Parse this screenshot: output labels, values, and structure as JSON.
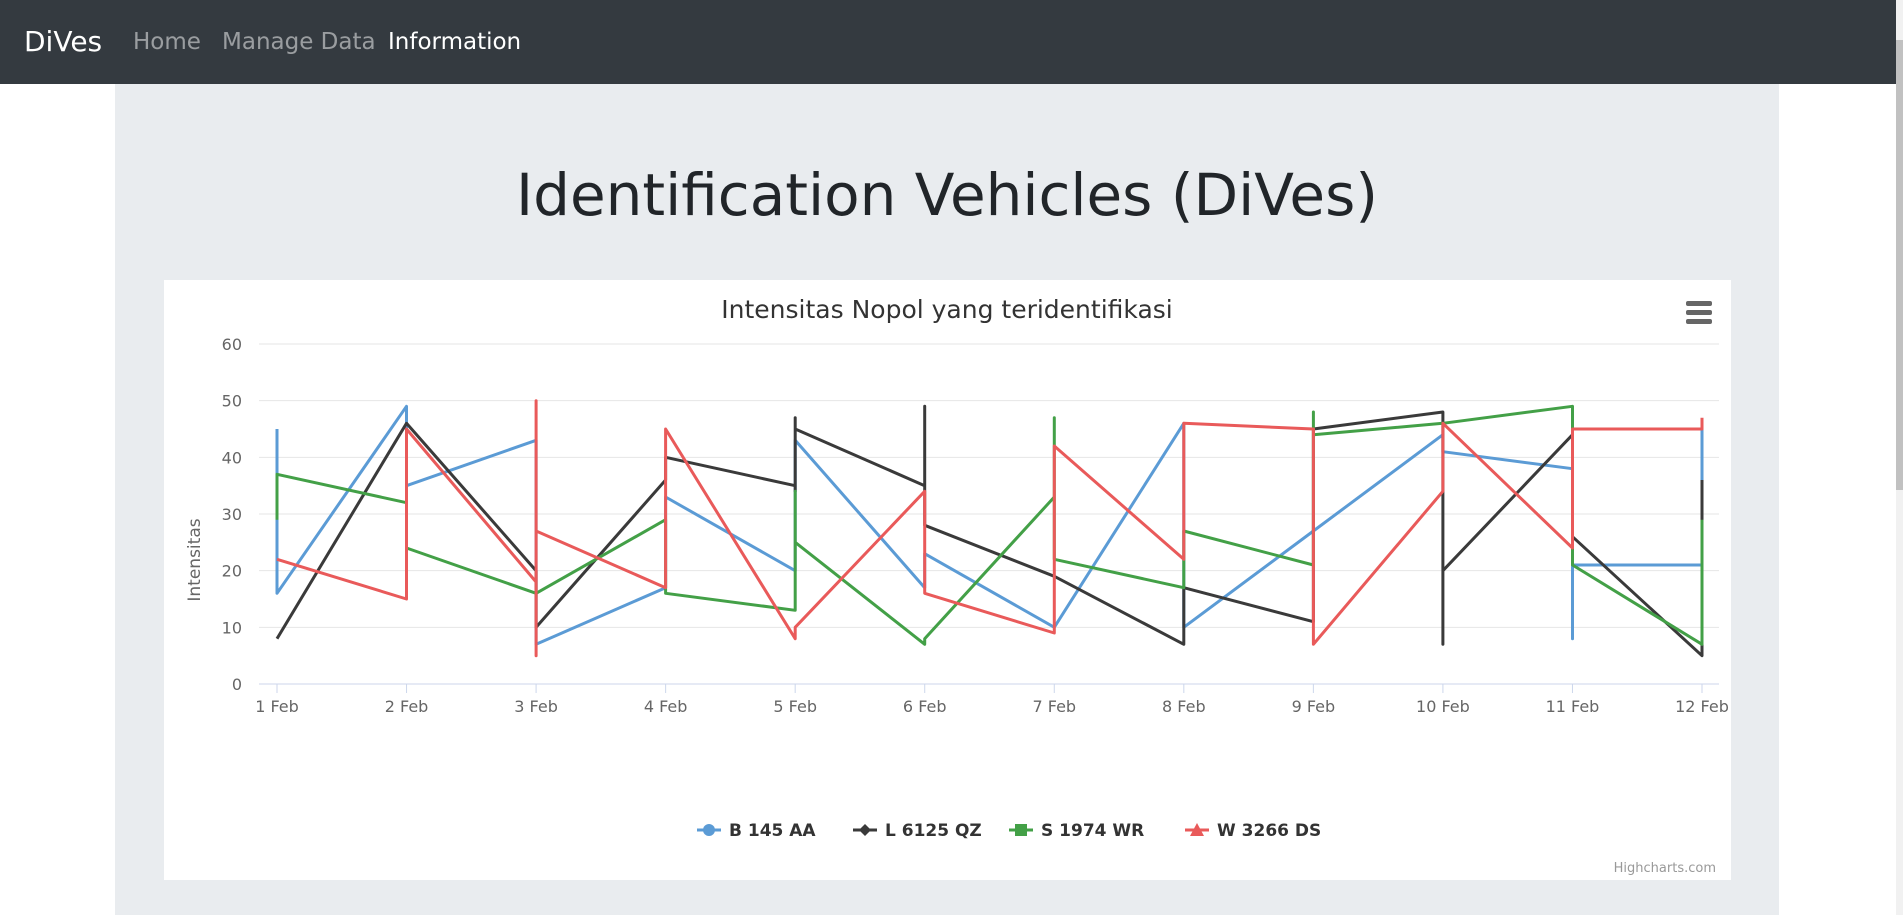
{
  "nav": {
    "brand": "DiVes",
    "links": [
      {
        "label": "Home",
        "active": false
      },
      {
        "label": "Manage Data",
        "active": false
      },
      {
        "label": "Information",
        "active": true
      }
    ]
  },
  "page": {
    "heading": "Identification Vehicles (DiVes)"
  },
  "chart_menu_icon": "hamburger-menu-icon",
  "credits": "Highcharts.com",
  "chart_data": {
    "type": "line",
    "title": "Intensitas Nopol yang teridentifikasi",
    "ylabel": "Intensitas",
    "xlabel": "",
    "ylim": [
      0,
      60
    ],
    "yticks": [
      0,
      10,
      20,
      30,
      40,
      50,
      60
    ],
    "categories": [
      "1 Feb",
      "2 Feb",
      "3 Feb",
      "4 Feb",
      "5 Feb",
      "6 Feb",
      "7 Feb",
      "8 Feb",
      "9 Feb",
      "10 Feb",
      "11 Feb",
      "12 Feb"
    ],
    "grid": true,
    "legend": "bottom-center",
    "series": [
      {
        "name": "B 145 AA",
        "color": "#5b9bd5",
        "marker": "circle",
        "points": [
          [
            0,
            45
          ],
          [
            0,
            16
          ],
          [
            1,
            49
          ],
          [
            1,
            35
          ],
          [
            2,
            43
          ],
          [
            2,
            7
          ],
          [
            3,
            17
          ],
          [
            3,
            33
          ],
          [
            4,
            20
          ],
          [
            4,
            43
          ],
          [
            5,
            17
          ],
          [
            5,
            23
          ],
          [
            6,
            10
          ],
          [
            7,
            46
          ],
          [
            7,
            10
          ],
          [
            8,
            27
          ],
          [
            9,
            44
          ],
          [
            9,
            41
          ],
          [
            10,
            38
          ],
          [
            10,
            8
          ],
          [
            10,
            21
          ],
          [
            11,
            21
          ],
          [
            11,
            45
          ]
        ]
      },
      {
        "name": "L 6125 QZ",
        "color": "#3a3a3a",
        "marker": "diamond",
        "points": [
          [
            0,
            8
          ],
          [
            1,
            46
          ],
          [
            2,
            20
          ],
          [
            2,
            10
          ],
          [
            3,
            36
          ],
          [
            3,
            40
          ],
          [
            4,
            35
          ],
          [
            4,
            34
          ],
          [
            4,
            47
          ],
          [
            4,
            45
          ],
          [
            5,
            35
          ],
          [
            5,
            49
          ],
          [
            5,
            28
          ],
          [
            6,
            19
          ],
          [
            7,
            7
          ],
          [
            7,
            13
          ],
          [
            7,
            17
          ],
          [
            8,
            11
          ],
          [
            8,
            45
          ],
          [
            9,
            48
          ],
          [
            9,
            7
          ],
          [
            9,
            20
          ],
          [
            10,
            44
          ],
          [
            10,
            26
          ],
          [
            11,
            5
          ],
          [
            11,
            36
          ]
        ]
      },
      {
        "name": "S 1974 WR",
        "color": "#43a047",
        "marker": "square",
        "points": [
          [
            0,
            29
          ],
          [
            0,
            37
          ],
          [
            1,
            32
          ],
          [
            1,
            24
          ],
          [
            2,
            16
          ],
          [
            3,
            29
          ],
          [
            3,
            16
          ],
          [
            4,
            13
          ],
          [
            4,
            34
          ],
          [
            4,
            25
          ],
          [
            5,
            7
          ],
          [
            5,
            8
          ],
          [
            6,
            33
          ],
          [
            6,
            47
          ],
          [
            6,
            22
          ],
          [
            7,
            17
          ],
          [
            7,
            27
          ],
          [
            8,
            21
          ],
          [
            8,
            48
          ],
          [
            8,
            44
          ],
          [
            9,
            46
          ],
          [
            10,
            49
          ],
          [
            10,
            21
          ],
          [
            11,
            7
          ],
          [
            11,
            29
          ]
        ]
      },
      {
        "name": "W 3266 DS",
        "color": "#e95a5a",
        "marker": "triangle",
        "points": [
          [
            0,
            22
          ],
          [
            1,
            15
          ],
          [
            1,
            45
          ],
          [
            2,
            18
          ],
          [
            2,
            50
          ],
          [
            2,
            5
          ],
          [
            2,
            27
          ],
          [
            3,
            17
          ],
          [
            3,
            45
          ],
          [
            4,
            8
          ],
          [
            4,
            10
          ],
          [
            5,
            34
          ],
          [
            5,
            16
          ],
          [
            6,
            9
          ],
          [
            6,
            42
          ],
          [
            7,
            22
          ],
          [
            7,
            46
          ],
          [
            8,
            45
          ],
          [
            8,
            7
          ],
          [
            9,
            34
          ],
          [
            9,
            46
          ],
          [
            10,
            24
          ],
          [
            10,
            45
          ],
          [
            11,
            45
          ],
          [
            11,
            47
          ]
        ]
      }
    ]
  }
}
